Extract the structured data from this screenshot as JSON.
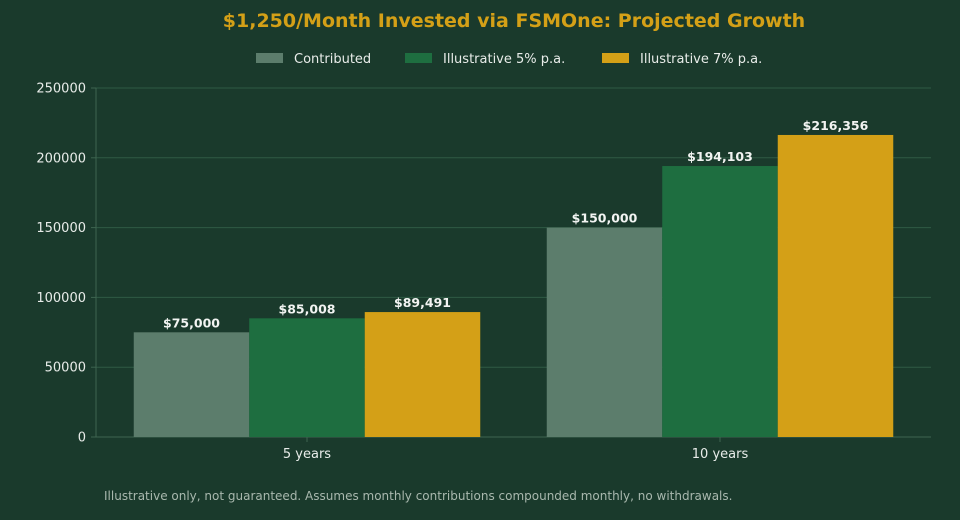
{
  "chart_data": {
    "type": "bar",
    "title": "$1,250/Month Invested via FSMOne: Projected Growth",
    "categories": [
      "5 years",
      "10 years"
    ],
    "series": [
      {
        "name": "Contributed",
        "values": [
          75000,
          150000
        ],
        "labels": [
          "$75,000",
          "$150,000"
        ],
        "color": "#5c7d6c"
      },
      {
        "name": "Illustrative 5% p.a.",
        "values": [
          85008,
          194103
        ],
        "labels": [
          "$85,008",
          "$194,103"
        ],
        "color": "#1e6e40"
      },
      {
        "name": "Illustrative 7% p.a.",
        "values": [
          89491,
          216356
        ],
        "labels": [
          "$89,491",
          "$216,356"
        ],
        "color": "#d4a017"
      }
    ],
    "ylim": [
      0,
      250000
    ],
    "yticks": [
      "0",
      "50000",
      "100000",
      "150000",
      "200000",
      "250000"
    ],
    "xlabel": "",
    "ylabel": "",
    "grid": true,
    "legend": "top-center",
    "footnote": "Illustrative only, not guaranteed. Assumes monthly contributions compounded monthly, no withdrawals."
  },
  "colors": {
    "background": "#1a3a2c",
    "title": "#d4a017",
    "grid": "#2f5a44",
    "axis": "#3e6450"
  }
}
